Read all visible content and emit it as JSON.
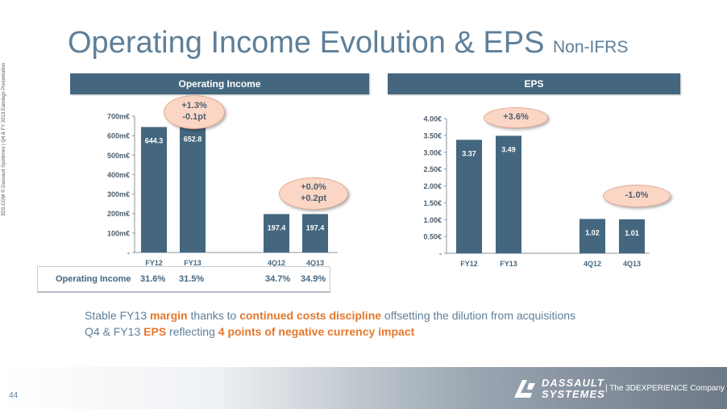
{
  "title": {
    "main": "Operating Income Evolution & EPS",
    "suffix": "Non-IFRS"
  },
  "side_note": "3DS.COM © Dassault Systèmes | Q4 & FY 2013 Earnings Presentation",
  "panels": {
    "left_header": "Operating Income",
    "right_header": "EPS"
  },
  "colors": {
    "bar": "#44677f",
    "accent": "#e5772b",
    "title": "#5e7f99",
    "bubble": "#fbd6c5"
  },
  "chart_data": [
    {
      "type": "bar",
      "title": "Operating Income",
      "categories": [
        "FY12",
        "FY13",
        "4Q12",
        "4Q13"
      ],
      "values": [
        644.3,
        652.8,
        197.4,
        197.4
      ],
      "value_labels": [
        "644.3",
        "652.8",
        "197.4",
        "197.4"
      ],
      "yticks": [
        "-",
        "100m€",
        "200m€",
        "300m€",
        "400m€",
        "500m€",
        "600m€",
        "700m€"
      ],
      "ylim": [
        0,
        700
      ],
      "gap_after_index": 1,
      "grid": false,
      "annotations": [
        {
          "lines": [
            "+1.3%",
            "-0.1pt"
          ],
          "near": "FY13"
        },
        {
          "lines": [
            "+0.0%",
            "+0.2pt"
          ],
          "near": "4Q13"
        }
      ]
    },
    {
      "type": "bar",
      "title": "EPS",
      "categories": [
        "FY12",
        "FY13",
        "4Q12",
        "4Q13"
      ],
      "values": [
        3.37,
        3.49,
        1.02,
        1.01
      ],
      "value_labels": [
        "3.37",
        "3.49",
        "1.02",
        "1.01"
      ],
      "yticks": [
        "-",
        "0.50€",
        "1.00€",
        "1.50€",
        "2.00€",
        "2.50€",
        "3.00€",
        "3.50€",
        "4.00€"
      ],
      "ylim": [
        0,
        4.0
      ],
      "gap_after_index": 1,
      "grid": false,
      "annotations": [
        {
          "lines": [
            "+3.6%"
          ],
          "near": "FY13"
        },
        {
          "lines": [
            "-1.0%"
          ],
          "near": "4Q13"
        }
      ]
    }
  ],
  "margin_table": {
    "label": "Operating Income",
    "values": [
      "31.6%",
      "31.5%",
      "34.7%",
      "34.9%"
    ]
  },
  "footer": {
    "line1": {
      "a": "Stable FY13 ",
      "b": "margin",
      "c": " thanks to ",
      "d": "continued costs discipline",
      "e": " offsetting the dilution from acquisitions"
    },
    "line2": {
      "a": "Q4 & FY13 ",
      "b": "EPS",
      "c": " reflecting ",
      "d": "4 points of negative currency impact"
    }
  },
  "page_number": "44",
  "logo": {
    "line1": "DASSAULT",
    "line2": "SYSTEMES",
    "tagline": "| The 3DEXPERIENCE Company",
    "mark_icon": "3ds-logo-icon"
  }
}
